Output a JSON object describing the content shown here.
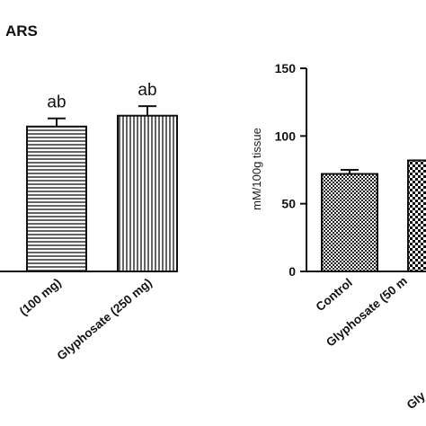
{
  "chart_data": [
    {
      "type": "bar",
      "title": "ARS",
      "categories": [
        "(100 mg)",
        "Glyphosate (250 mg)"
      ],
      "values": [
        107,
        115
      ],
      "errors": [
        6,
        7
      ],
      "annotations": [
        "ab",
        "ab"
      ],
      "ylim": [
        0,
        150
      ],
      "bar_pattern": "horizontal-lines",
      "bar_stroke": "#111111"
    },
    {
      "type": "bar",
      "title": "",
      "categories": [
        "Control",
        "Glyphosate (50 m",
        "Gly"
      ],
      "values": [
        72,
        82,
        null
      ],
      "errors": [
        3,
        2,
        null
      ],
      "ylabel": "mM/100g tissue",
      "ylim": [
        0,
        150
      ],
      "yticks": [
        "0",
        "50",
        "100",
        "150"
      ],
      "bar_pattern": "checker",
      "bar_stroke": "#111111"
    }
  ]
}
